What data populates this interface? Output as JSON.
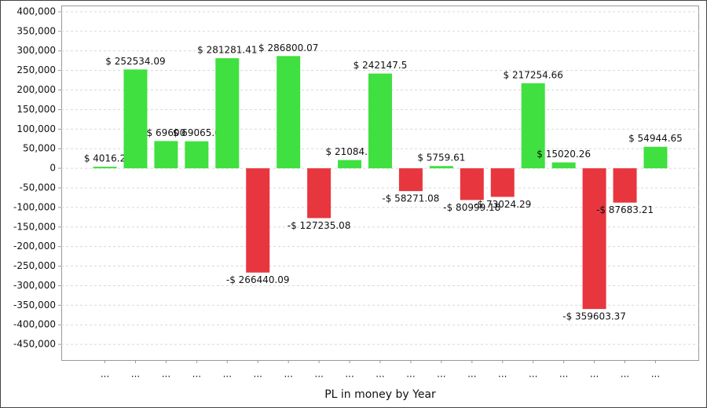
{
  "chart_data": {
    "type": "bar",
    "x_label": "PL in money by Year",
    "categories": [
      "...",
      "...",
      "...",
      "...",
      "...",
      "...",
      "...",
      "...",
      "...",
      "...",
      "...",
      "...",
      "...",
      "...",
      "...",
      "...",
      "...",
      "...",
      "..."
    ],
    "values": [
      4016.2,
      252534.09,
      69600,
      69065,
      281281.41,
      -266440.09,
      286800.07,
      -127235.08,
      21084.1,
      242147.5,
      -58271.08,
      5759.61,
      -80999.18,
      -73024.29,
      217254.66,
      15020.26,
      -359603.37,
      -87683.21,
      54944.65
    ],
    "value_labels": [
      "$ 4016.2",
      "$ 252534.09",
      "$ 69600",
      "$ 69065.0",
      "$ 281281.41",
      "-$ 266440.09",
      "$ 286800.07",
      "-$ 127235.08",
      "$ 21084.1",
      "$ 242147.5",
      "-$ 58271.08",
      "$ 5759.61",
      "-$ 80999.18",
      "-$ 73024.29",
      "$ 217254.66",
      "$ 15020.26",
      "-$ 359603.37",
      "-$ 87683.21",
      "$ 54944.65"
    ],
    "positive_color": "#3fe03f",
    "negative_color": "#e8363e",
    "ylim": [
      -490000,
      414000
    ],
    "yticks": [
      {
        "value": -450000,
        "label": "-450,000"
      },
      {
        "value": -400000,
        "label": "-400,000"
      },
      {
        "value": -350000,
        "label": "-350,000"
      },
      {
        "value": -300000,
        "label": "-300,000"
      },
      {
        "value": -250000,
        "label": "-250,000"
      },
      {
        "value": -200000,
        "label": "-200,000"
      },
      {
        "value": -150000,
        "label": "-150,000"
      },
      {
        "value": -100000,
        "label": "-100,000"
      },
      {
        "value": -50000,
        "label": "-50,000"
      },
      0,
      {
        "value": 50000,
        "label": "50,000"
      },
      {
        "value": 100000,
        "label": "100,000"
      },
      {
        "value": 150000,
        "label": "150,000"
      },
      {
        "value": 200000,
        "label": "200,000"
      },
      {
        "value": 250000,
        "label": "250,000"
      },
      {
        "value": 300000,
        "label": "300,000"
      },
      {
        "value": 350000,
        "label": "350,000"
      },
      {
        "value": 400000,
        "label": "400,000"
      }
    ],
    "grid": true
  }
}
